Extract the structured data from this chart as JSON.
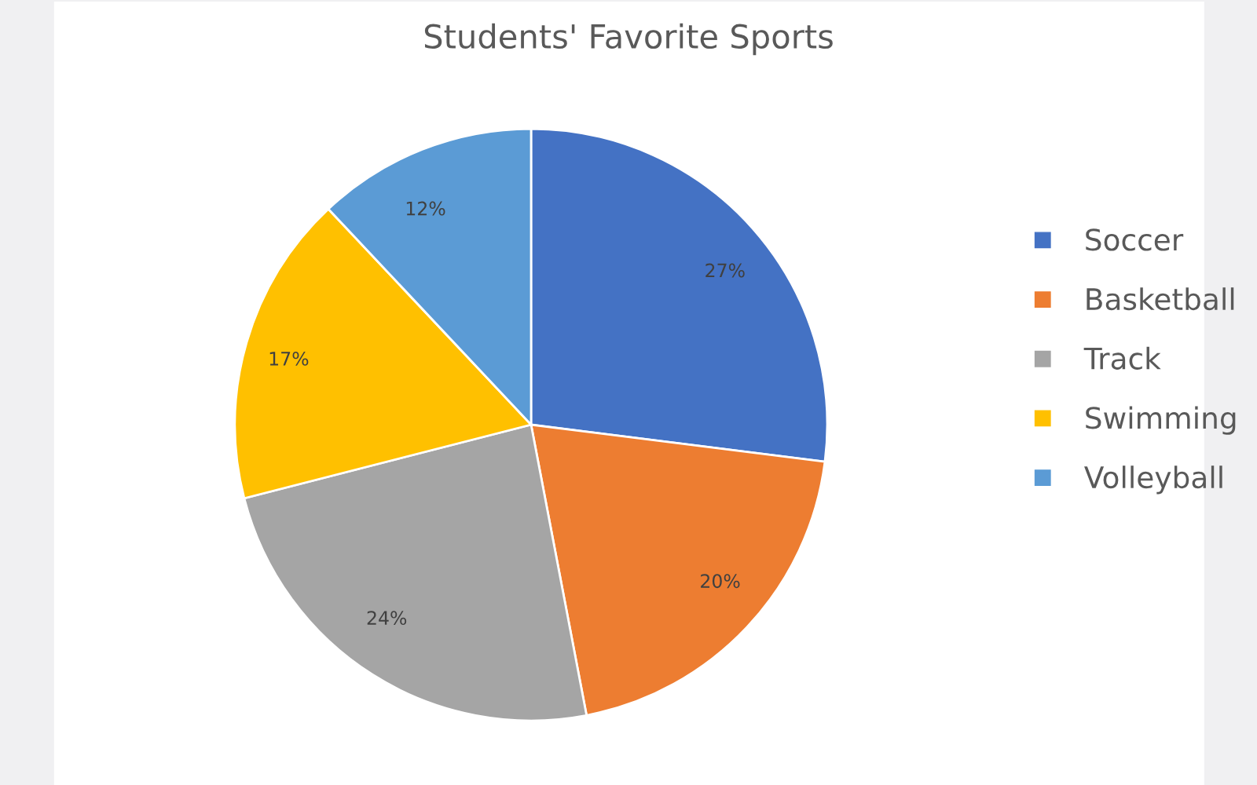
{
  "chart_data": {
    "type": "pie",
    "title": "Students' Favorite Sports",
    "categories": [
      "Soccer",
      "Basketball",
      "Track",
      "Swimming",
      "Volleyball"
    ],
    "values": [
      27,
      20,
      24,
      17,
      12
    ],
    "colors": [
      "#4472c4",
      "#ed7d31",
      "#a5a5a5",
      "#ffc000",
      "#5b9bd5"
    ],
    "value_labels": [
      "27%",
      "20%",
      "24%",
      "17%",
      "12%"
    ],
    "legend": "right"
  }
}
